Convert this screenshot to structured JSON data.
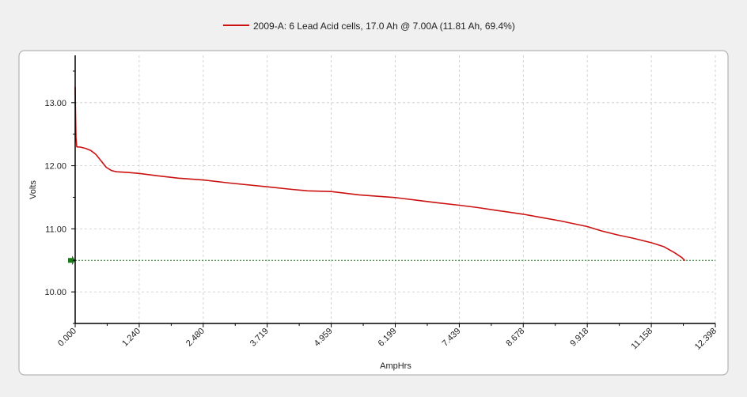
{
  "chart_data": {
    "type": "line",
    "title": "",
    "xlabel": "AmpHrs",
    "ylabel": "Volts",
    "xlim": [
      0,
      12.398
    ],
    "ylim": [
      9.5,
      13.75
    ],
    "x_ticks": [
      "0.000",
      "1.240",
      "2.480",
      "3.719",
      "4.959",
      "6.199",
      "7.439",
      "8.678",
      "9.918",
      "11.158",
      "12.398"
    ],
    "y_ticks": [
      "10.00",
      "11.00",
      "12.00",
      "13.00"
    ],
    "grid": true,
    "legend_position": "top-center",
    "threshold": {
      "y": 10.5,
      "color": "#1a7a1a"
    },
    "series": [
      {
        "name": "2009-A: 6 Lead Acid cells, 17.0 Ah @ 7.00A (11.81 Ah, 69.4%)",
        "color": "#cc1111",
        "x": [
          0,
          0.005,
          0.015,
          0.03,
          0.1,
          0.2,
          0.3,
          0.4,
          0.5,
          0.6,
          0.7,
          0.8,
          0.9,
          1.0,
          1.24,
          1.6,
          2.0,
          2.48,
          3.0,
          3.719,
          4.2,
          4.5,
          4.959,
          5.5,
          6.199,
          6.6,
          7.0,
          7.439,
          7.8,
          8.2,
          8.678,
          9.0,
          9.4,
          9.918,
          10.2,
          10.5,
          10.8,
          11.158,
          11.4,
          11.6,
          11.75,
          11.81
        ],
        "values": [
          13.25,
          12.95,
          12.45,
          12.3,
          12.29,
          12.27,
          12.24,
          12.18,
          12.08,
          11.98,
          11.93,
          11.91,
          11.905,
          11.9,
          11.88,
          11.84,
          11.8,
          11.77,
          11.72,
          11.66,
          11.62,
          11.6,
          11.59,
          11.54,
          11.5,
          11.46,
          11.42,
          11.38,
          11.34,
          11.29,
          11.23,
          11.18,
          11.12,
          11.03,
          10.96,
          10.9,
          10.85,
          10.78,
          10.72,
          10.63,
          10.55,
          10.5
        ]
      }
    ]
  }
}
